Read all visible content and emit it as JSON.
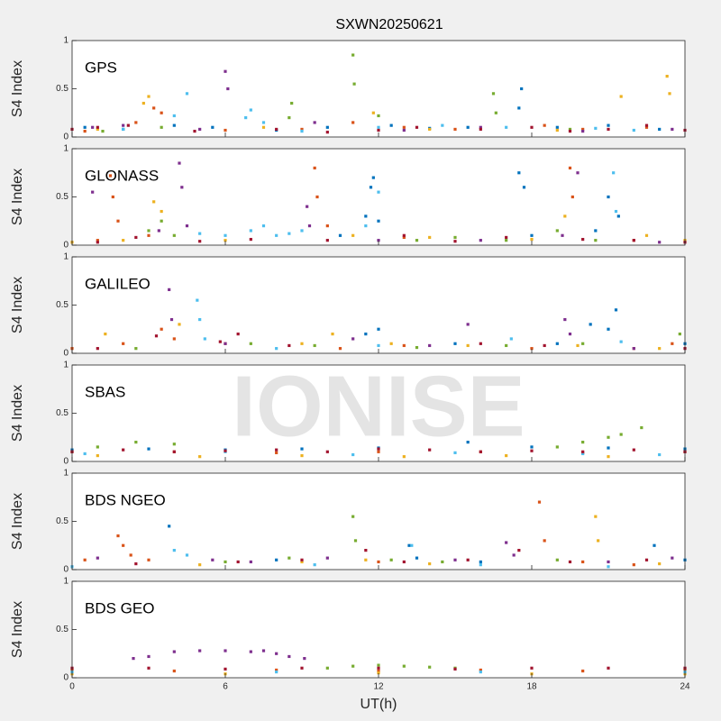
{
  "title": "SXWN20250621",
  "watermark": "IONISE",
  "chart_data": [
    {
      "type": "scatter",
      "label": "GPS",
      "y_label": "S4 Index",
      "xlim": [
        0,
        24
      ],
      "xticks": [
        0,
        6,
        12,
        18,
        24
      ],
      "ylim": [
        0,
        1
      ],
      "yticks": [
        0,
        0.5,
        1
      ],
      "series": [
        {
          "color": "#0072BD",
          "x": [
            0.5,
            2,
            4,
            5.5,
            8,
            10,
            12.5,
            14,
            15.5,
            17.5,
            17.6,
            19,
            21,
            23
          ],
          "values": [
            0.1,
            0.08,
            0.12,
            0.1,
            0.07,
            0.1,
            0.12,
            0.09,
            0.1,
            0.3,
            0.5,
            0.1,
            0.12,
            0.08
          ]
        },
        {
          "color": "#D95319",
          "x": [
            0.5,
            2.5,
            3.2,
            3.5,
            6,
            9,
            11,
            13,
            15,
            18.5,
            20,
            22.5
          ],
          "values": [
            0.06,
            0.15,
            0.3,
            0.25,
            0.07,
            0.08,
            0.15,
            0.1,
            0.08,
            0.12,
            0.08,
            0.1
          ]
        },
        {
          "color": "#EDB120",
          "x": [
            1,
            2.8,
            3,
            7.5,
            11.8,
            14,
            19,
            21.5,
            23.3,
            23.4
          ],
          "values": [
            0.08,
            0.35,
            0.42,
            0.1,
            0.25,
            0.08,
            0.07,
            0.42,
            0.63,
            0.45
          ]
        },
        {
          "color": "#7E2F8E",
          "x": [
            0.8,
            2,
            5,
            6,
            6.1,
            9.5,
            13,
            16,
            20,
            23.5
          ],
          "values": [
            0.1,
            0.12,
            0.08,
            0.68,
            0.5,
            0.15,
            0.07,
            0.1,
            0.06,
            0.08
          ]
        },
        {
          "color": "#77AC30",
          "x": [
            1.2,
            3.5,
            8.5,
            8.6,
            11,
            11.05,
            12,
            16.5,
            16.6,
            19.5
          ],
          "values": [
            0.06,
            0.1,
            0.2,
            0.35,
            0.85,
            0.55,
            0.22,
            0.45,
            0.25,
            0.08
          ]
        },
        {
          "color": "#4DBEEE",
          "x": [
            2,
            4,
            4.5,
            6.8,
            7,
            7.5,
            9,
            12,
            14.5,
            17,
            20.5,
            22
          ],
          "values": [
            0.08,
            0.22,
            0.45,
            0.2,
            0.28,
            0.15,
            0.06,
            0.1,
            0.12,
            0.1,
            0.09,
            0.07
          ]
        },
        {
          "color": "#A2142F",
          "x": [
            0,
            1,
            2.2,
            4.8,
            8,
            10,
            12,
            13.5,
            16,
            18,
            19.5,
            21,
            22.5,
            24
          ],
          "values": [
            0.08,
            0.1,
            0.12,
            0.06,
            0.08,
            0.05,
            0.07,
            0.1,
            0.08,
            0.1,
            0.06,
            0.08,
            0.12,
            0.07
          ]
        }
      ]
    },
    {
      "type": "scatter",
      "label": "GLONASS",
      "y_label": "S4 Index",
      "xlim": [
        0,
        24
      ],
      "xticks": [
        0,
        6,
        12,
        18,
        24
      ],
      "ylim": [
        0,
        1
      ],
      "yticks": [
        0,
        0.5,
        1
      ],
      "series": [
        {
          "color": "#0072BD",
          "x": [
            10.5,
            11.5,
            11.7,
            11.8,
            12,
            17.5,
            17.7,
            18,
            20.5,
            21,
            21.4
          ],
          "values": [
            0.1,
            0.3,
            0.6,
            0.7,
            0.25,
            0.75,
            0.6,
            0.1,
            0.15,
            0.5,
            0.3
          ]
        },
        {
          "color": "#D95319",
          "x": [
            1,
            1.5,
            1.6,
            1.8,
            3,
            9.5,
            9.6,
            10,
            13,
            19.5,
            19.6,
            22
          ],
          "values": [
            0.05,
            0.72,
            0.5,
            0.25,
            0.1,
            0.8,
            0.5,
            0.2,
            0.08,
            0.8,
            0.5,
            0.05
          ]
        },
        {
          "color": "#EDB120",
          "x": [
            0,
            2,
            3.2,
            3.5,
            6,
            11,
            14,
            18,
            19.3,
            22.5,
            24
          ],
          "values": [
            0.03,
            0.05,
            0.45,
            0.35,
            0.05,
            0.1,
            0.08,
            0.06,
            0.3,
            0.1,
            0.05
          ]
        },
        {
          "color": "#7E2F8E",
          "x": [
            0.8,
            3.4,
            4.2,
            4.3,
            4.5,
            9.2,
            9.3,
            12,
            16,
            19.2,
            19.8,
            23
          ],
          "values": [
            0.55,
            0.15,
            0.85,
            0.6,
            0.2,
            0.4,
            0.2,
            0.05,
            0.05,
            0.1,
            0.75,
            0.03
          ]
        },
        {
          "color": "#77AC30",
          "x": [
            3,
            3.5,
            4,
            13.5,
            15,
            17,
            19,
            20.5
          ],
          "values": [
            0.15,
            0.25,
            0.1,
            0.05,
            0.08,
            0.05,
            0.15,
            0.05
          ]
        },
        {
          "color": "#4DBEEE",
          "x": [
            5,
            6,
            7,
            7.5,
            8,
            8.5,
            9,
            11.5,
            12,
            21.2,
            21.3
          ],
          "values": [
            0.12,
            0.1,
            0.15,
            0.2,
            0.1,
            0.12,
            0.15,
            0.2,
            0.55,
            0.75,
            0.35
          ]
        },
        {
          "color": "#A2142F",
          "x": [
            1,
            2.5,
            5,
            7,
            10,
            13,
            15,
            17,
            20,
            22,
            24
          ],
          "values": [
            0.03,
            0.08,
            0.04,
            0.06,
            0.05,
            0.1,
            0.04,
            0.08,
            0.06,
            0.05,
            0.03
          ]
        }
      ]
    },
    {
      "type": "scatter",
      "label": "GALILEO",
      "y_label": "S4 Index",
      "xlim": [
        0,
        24
      ],
      "xticks": [
        0,
        6,
        12,
        18,
        24
      ],
      "ylim": [
        0,
        1
      ],
      "yticks": [
        0,
        0.5,
        1
      ],
      "series": [
        {
          "color": "#0072BD",
          "x": [
            11.5,
            12,
            15,
            19,
            20.3,
            21,
            21.3,
            24
          ],
          "values": [
            0.2,
            0.25,
            0.1,
            0.1,
            0.3,
            0.25,
            0.45,
            0.1
          ]
        },
        {
          "color": "#D95319",
          "x": [
            0,
            2,
            3.5,
            4,
            6,
            10.5,
            13,
            18,
            22,
            23.5
          ],
          "values": [
            0.05,
            0.1,
            0.25,
            0.15,
            0.1,
            0.05,
            0.08,
            0.05,
            0.05,
            0.1
          ]
        },
        {
          "color": "#EDB120",
          "x": [
            1.3,
            4.2,
            9,
            10.2,
            12.5,
            15.5,
            19.8,
            23
          ],
          "values": [
            0.2,
            0.3,
            0.1,
            0.2,
            0.1,
            0.08,
            0.08,
            0.05
          ]
        },
        {
          "color": "#7E2F8E",
          "x": [
            3.8,
            3.9,
            6,
            11,
            14,
            15.5,
            19.3,
            19.5,
            22
          ],
          "values": [
            0.66,
            0.35,
            0.1,
            0.15,
            0.08,
            0.3,
            0.35,
            0.2,
            0.05
          ]
        },
        {
          "color": "#77AC30",
          "x": [
            2.5,
            7,
            9.5,
            13.5,
            17,
            20,
            23.8
          ],
          "values": [
            0.05,
            0.1,
            0.08,
            0.06,
            0.08,
            0.1,
            0.2
          ]
        },
        {
          "color": "#4DBEEE",
          "x": [
            4.9,
            5,
            5.2,
            8,
            12,
            17.2,
            21.5
          ],
          "values": [
            0.55,
            0.35,
            0.15,
            0.05,
            0.08,
            0.15,
            0.12
          ]
        },
        {
          "color": "#A2142F",
          "x": [
            1,
            3.3,
            5.8,
            6.5,
            8.5,
            16,
            18.5,
            24
          ],
          "values": [
            0.05,
            0.18,
            0.12,
            0.2,
            0.08,
            0.1,
            0.08,
            0.05
          ]
        }
      ]
    },
    {
      "type": "scatter",
      "label": "SBAS",
      "y_label": "S4 Index",
      "xlim": [
        0,
        24
      ],
      "xticks": [
        0,
        6,
        12,
        18,
        24
      ],
      "ylim": [
        0,
        1
      ],
      "yticks": [
        0,
        0.5,
        1
      ],
      "series": [
        {
          "color": "#0072BD",
          "x": [
            0,
            3,
            6,
            9,
            12,
            15.5,
            18,
            21,
            24
          ],
          "values": [
            0.12,
            0.13,
            0.12,
            0.13,
            0.14,
            0.2,
            0.15,
            0.14,
            0.13
          ]
        },
        {
          "color": "#D95319",
          "x": [
            0,
            4,
            8,
            12,
            16,
            20,
            24
          ],
          "values": [
            0.1,
            0.1,
            0.09,
            0.1,
            0.1,
            0.09,
            0.1
          ]
        },
        {
          "color": "#EDB120",
          "x": [
            1,
            5,
            9,
            13,
            17,
            21
          ],
          "values": [
            0.06,
            0.05,
            0.06,
            0.05,
            0.06,
            0.05
          ]
        },
        {
          "color": "#77AC30",
          "x": [
            1,
            2.5,
            4,
            19,
            20,
            21,
            21.5,
            22.3
          ],
          "values": [
            0.15,
            0.2,
            0.18,
            0.15,
            0.2,
            0.25,
            0.28,
            0.35
          ]
        },
        {
          "color": "#4DBEEE",
          "x": [
            0.5,
            6,
            11,
            15,
            20,
            23
          ],
          "values": [
            0.08,
            0.1,
            0.07,
            0.09,
            0.08,
            0.07
          ]
        },
        {
          "color": "#A2142F",
          "x": [
            0,
            2,
            4,
            6,
            8,
            10,
            12,
            14,
            16,
            18,
            20,
            22,
            24
          ],
          "values": [
            0.1,
            0.12,
            0.1,
            0.11,
            0.12,
            0.1,
            0.13,
            0.12,
            0.1,
            0.11,
            0.1,
            0.12,
            0.1
          ]
        }
      ]
    },
    {
      "type": "scatter",
      "label": "BDS NGEO",
      "y_label": "S4 Index",
      "xlim": [
        0,
        24
      ],
      "xticks": [
        0,
        6,
        12,
        18,
        24
      ],
      "ylim": [
        0,
        1
      ],
      "yticks": [
        0,
        0.5,
        1
      ],
      "series": [
        {
          "color": "#0072BD",
          "x": [
            3.8,
            8,
            13.2,
            13.5,
            16,
            22.8,
            24
          ],
          "values": [
            0.45,
            0.1,
            0.25,
            0.12,
            0.08,
            0.25,
            0.1
          ]
        },
        {
          "color": "#D95319",
          "x": [
            0.5,
            1.8,
            2,
            2.3,
            3,
            12,
            18.3,
            18.5,
            20,
            22
          ],
          "values": [
            0.1,
            0.35,
            0.25,
            0.15,
            0.1,
            0.08,
            0.7,
            0.3,
            0.08,
            0.05
          ]
        },
        {
          "color": "#EDB120",
          "x": [
            5,
            9,
            11.5,
            14,
            20.5,
            20.6,
            23
          ],
          "values": [
            0.05,
            0.08,
            0.1,
            0.06,
            0.55,
            0.3,
            0.06
          ]
        },
        {
          "color": "#7E2F8E",
          "x": [
            1,
            5.5,
            7,
            10,
            15,
            17,
            17.3,
            21,
            23.5
          ],
          "values": [
            0.12,
            0.1,
            0.08,
            0.12,
            0.1,
            0.28,
            0.15,
            0.08,
            0.12
          ]
        },
        {
          "color": "#77AC30",
          "x": [
            6,
            8.5,
            11,
            11.1,
            12.5,
            14.5,
            19
          ],
          "values": [
            0.08,
            0.12,
            0.55,
            0.3,
            0.1,
            0.08,
            0.1
          ]
        },
        {
          "color": "#4DBEEE",
          "x": [
            0,
            4,
            4.5,
            9.5,
            13.3,
            16,
            21
          ],
          "values": [
            0.03,
            0.2,
            0.15,
            0.05,
            0.25,
            0.05,
            0.03
          ]
        },
        {
          "color": "#A2142F",
          "x": [
            2.5,
            6.5,
            9,
            11.5,
            13,
            15.5,
            17.5,
            19.5,
            22.5
          ],
          "values": [
            0.06,
            0.08,
            0.1,
            0.2,
            0.08,
            0.1,
            0.2,
            0.08,
            0.1
          ]
        }
      ]
    },
    {
      "type": "scatter",
      "label": "BDS GEO",
      "y_label": "S4 Index",
      "x_label": "UT(h)",
      "xlim": [
        0,
        24
      ],
      "xticks": [
        0,
        6,
        12,
        18,
        24
      ],
      "ylim": [
        0,
        1
      ],
      "yticks": [
        0,
        0.5,
        1
      ],
      "series": [
        {
          "color": "#D95319",
          "x": [
            0,
            4,
            8,
            12,
            16,
            20,
            24
          ],
          "values": [
            0.08,
            0.07,
            0.08,
            0.07,
            0.08,
            0.07,
            0.08
          ]
        },
        {
          "color": "#EDB120",
          "x": [
            0,
            6,
            12,
            18,
            24
          ],
          "values": [
            0.04,
            0.04,
            0.05,
            0.04,
            0.04
          ]
        },
        {
          "color": "#7E2F8E",
          "x": [
            2.4,
            3,
            4,
            5,
            6,
            7,
            7.5,
            8,
            8.5,
            9.1
          ],
          "values": [
            0.2,
            0.22,
            0.27,
            0.28,
            0.28,
            0.27,
            0.28,
            0.25,
            0.22,
            0.2
          ]
        },
        {
          "color": "#77AC30",
          "x": [
            10,
            11,
            12,
            13,
            14,
            15
          ],
          "values": [
            0.1,
            0.12,
            0.13,
            0.12,
            0.11,
            0.1
          ]
        },
        {
          "color": "#4DBEEE",
          "x": [
            0,
            8,
            16,
            24
          ],
          "values": [
            0.06,
            0.06,
            0.06,
            0.06
          ]
        },
        {
          "color": "#A2142F",
          "x": [
            0,
            3,
            6,
            9,
            12,
            15,
            18,
            21,
            24
          ],
          "values": [
            0.1,
            0.1,
            0.09,
            0.1,
            0.1,
            0.09,
            0.1,
            0.1,
            0.1
          ]
        }
      ]
    }
  ]
}
